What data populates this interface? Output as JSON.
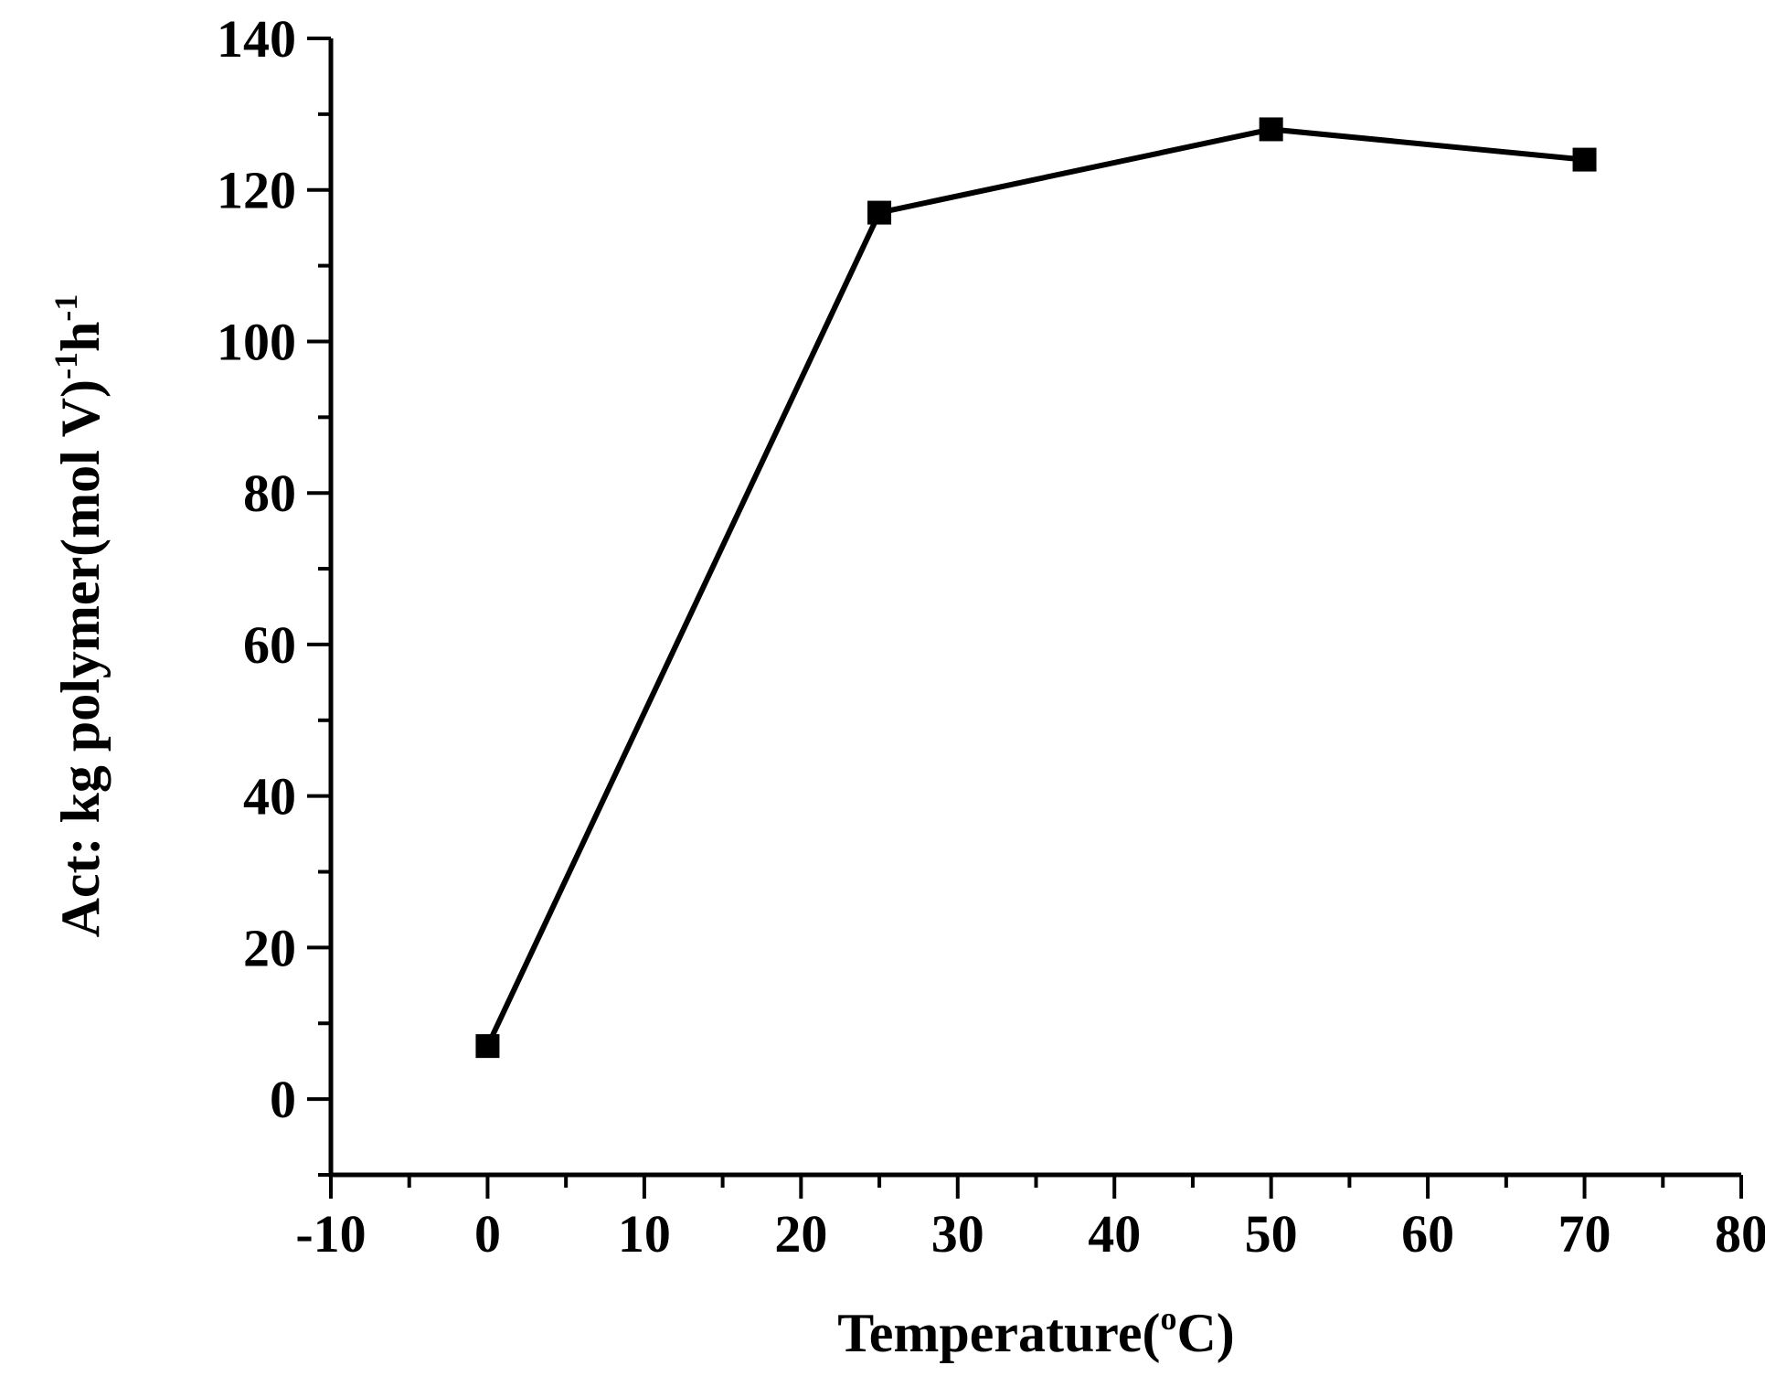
{
  "chart_data": {
    "type": "line",
    "title": "",
    "xlabel": {
      "main": "Temperature(",
      "superscript": "o",
      "unit": "C)"
    },
    "ylabel": {
      "main": "Act: kg polymer(mol V)",
      "sup1": "-1",
      "mid": "h",
      "sup2": "-1"
    },
    "xlim": [
      -10,
      80
    ],
    "ylim": [
      -10,
      140
    ],
    "xticks": [
      -10,
      0,
      10,
      20,
      30,
      40,
      50,
      60,
      70,
      80
    ],
    "xtick_labels": [
      "-10",
      "0",
      "10",
      "20",
      "30",
      "40",
      "50",
      "60",
      "70",
      "80"
    ],
    "yticks": [
      0,
      20,
      40,
      60,
      80,
      100,
      120,
      140
    ],
    "ytick_labels": [
      "0",
      "20",
      "40",
      "60",
      "80",
      "100",
      "120",
      "140"
    ],
    "grid": false,
    "legend": false,
    "series": [
      {
        "x": [
          0,
          25,
          50,
          70
        ],
        "y": [
          7,
          117,
          128,
          124
        ],
        "marker": "square",
        "color": "#000000"
      }
    ]
  }
}
